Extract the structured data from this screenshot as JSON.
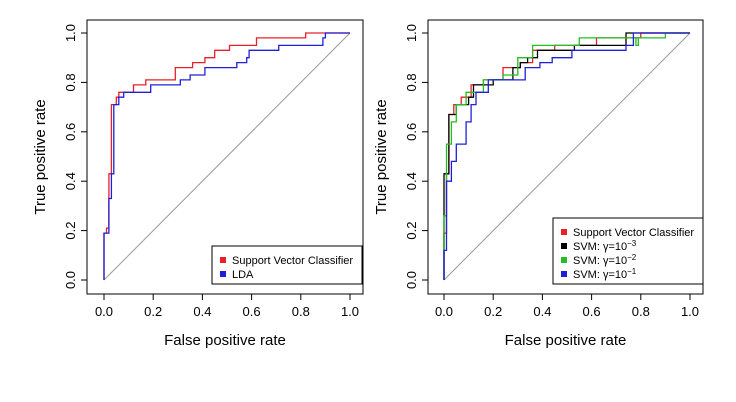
{
  "chart_data": [
    {
      "type": "line",
      "xlabel": "False positive rate",
      "ylabel": "True positive rate",
      "xlim": [
        0,
        1
      ],
      "ylim": [
        0,
        1
      ],
      "x_ticks": [
        "0.0",
        "0.2",
        "0.4",
        "0.6",
        "0.8",
        "1.0"
      ],
      "y_ticks": [
        "0.0",
        "0.2",
        "0.4",
        "0.6",
        "0.8",
        "1.0"
      ],
      "grid": false,
      "diagonal_reference": true,
      "legend_position": "bottom-right",
      "series": [
        {
          "name": "Support Vector Classifier",
          "color": "#e8202a",
          "points": [
            [
              0.0,
              0.0
            ],
            [
              0.0,
              0.19
            ],
            [
              0.01,
              0.19
            ],
            [
              0.01,
              0.21
            ],
            [
              0.02,
              0.21
            ],
            [
              0.02,
              0.43
            ],
            [
              0.03,
              0.43
            ],
            [
              0.03,
              0.71
            ],
            [
              0.05,
              0.71
            ],
            [
              0.05,
              0.74
            ],
            [
              0.06,
              0.74
            ],
            [
              0.06,
              0.76
            ],
            [
              0.12,
              0.76
            ],
            [
              0.12,
              0.79
            ],
            [
              0.17,
              0.79
            ],
            [
              0.17,
              0.81
            ],
            [
              0.29,
              0.81
            ],
            [
              0.29,
              0.86
            ],
            [
              0.36,
              0.86
            ],
            [
              0.36,
              0.88
            ],
            [
              0.41,
              0.88
            ],
            [
              0.41,
              0.9
            ],
            [
              0.45,
              0.9
            ],
            [
              0.45,
              0.93
            ],
            [
              0.51,
              0.93
            ],
            [
              0.51,
              0.95
            ],
            [
              0.62,
              0.95
            ],
            [
              0.62,
              0.98
            ],
            [
              0.82,
              0.98
            ],
            [
              0.82,
              1.0
            ],
            [
              1.0,
              1.0
            ]
          ]
        },
        {
          "name": "LDA",
          "color": "#2020d8",
          "points": [
            [
              0.0,
              0.0
            ],
            [
              0.0,
              0.19
            ],
            [
              0.02,
              0.19
            ],
            [
              0.02,
              0.33
            ],
            [
              0.03,
              0.33
            ],
            [
              0.03,
              0.43
            ],
            [
              0.04,
              0.43
            ],
            [
              0.04,
              0.71
            ],
            [
              0.06,
              0.71
            ],
            [
              0.06,
              0.74
            ],
            [
              0.08,
              0.74
            ],
            [
              0.08,
              0.76
            ],
            [
              0.19,
              0.76
            ],
            [
              0.19,
              0.79
            ],
            [
              0.31,
              0.79
            ],
            [
              0.31,
              0.81
            ],
            [
              0.35,
              0.81
            ],
            [
              0.35,
              0.83
            ],
            [
              0.41,
              0.83
            ],
            [
              0.41,
              0.86
            ],
            [
              0.54,
              0.86
            ],
            [
              0.54,
              0.88
            ],
            [
              0.58,
              0.88
            ],
            [
              0.58,
              0.9
            ],
            [
              0.59,
              0.9
            ],
            [
              0.59,
              0.93
            ],
            [
              0.71,
              0.93
            ],
            [
              0.71,
              0.95
            ],
            [
              0.89,
              0.95
            ],
            [
              0.89,
              0.98
            ],
            [
              0.9,
              0.98
            ],
            [
              0.9,
              1.0
            ],
            [
              1.0,
              1.0
            ]
          ]
        }
      ]
    },
    {
      "type": "line",
      "xlabel": "False positive rate",
      "ylabel": "True positive rate",
      "xlim": [
        0,
        1
      ],
      "ylim": [
        0,
        1
      ],
      "x_ticks": [
        "0.0",
        "0.2",
        "0.4",
        "0.6",
        "0.8",
        "1.0"
      ],
      "y_ticks": [
        "0.0",
        "0.2",
        "0.4",
        "0.6",
        "0.8",
        "1.0"
      ],
      "grid": false,
      "diagonal_reference": true,
      "legend_position": "bottom-right",
      "series": [
        {
          "name": "Support Vector Classifier",
          "legend_main": "Support Vector Classifier",
          "legend_sup": "",
          "color": "#e8202a",
          "points": [
            [
              0.0,
              0.0
            ],
            [
              0.0,
              0.19
            ],
            [
              0.01,
              0.19
            ],
            [
              0.01,
              0.43
            ],
            [
              0.02,
              0.43
            ],
            [
              0.02,
              0.67
            ],
            [
              0.04,
              0.67
            ],
            [
              0.04,
              0.71
            ],
            [
              0.07,
              0.71
            ],
            [
              0.07,
              0.74
            ],
            [
              0.11,
              0.74
            ],
            [
              0.11,
              0.79
            ],
            [
              0.16,
              0.79
            ],
            [
              0.16,
              0.81
            ],
            [
              0.24,
              0.81
            ],
            [
              0.24,
              0.86
            ],
            [
              0.31,
              0.86
            ],
            [
              0.31,
              0.88
            ],
            [
              0.36,
              0.88
            ],
            [
              0.36,
              0.93
            ],
            [
              0.45,
              0.93
            ],
            [
              0.45,
              0.95
            ],
            [
              0.62,
              0.95
            ],
            [
              0.62,
              0.98
            ],
            [
              0.8,
              0.98
            ],
            [
              0.8,
              1.0
            ],
            [
              1.0,
              1.0
            ]
          ]
        },
        {
          "name": "SVM: γ=10−3",
          "legend_main": "SVM: γ=10",
          "legend_sup": "−3",
          "color": "#000000",
          "points": [
            [
              0.0,
              0.0
            ],
            [
              0.0,
              0.43
            ],
            [
              0.02,
              0.43
            ],
            [
              0.02,
              0.67
            ],
            [
              0.05,
              0.67
            ],
            [
              0.05,
              0.71
            ],
            [
              0.1,
              0.71
            ],
            [
              0.1,
              0.74
            ],
            [
              0.12,
              0.74
            ],
            [
              0.12,
              0.79
            ],
            [
              0.2,
              0.79
            ],
            [
              0.2,
              0.81
            ],
            [
              0.28,
              0.81
            ],
            [
              0.28,
              0.86
            ],
            [
              0.31,
              0.86
            ],
            [
              0.31,
              0.88
            ],
            [
              0.34,
              0.88
            ],
            [
              0.34,
              0.9
            ],
            [
              0.38,
              0.9
            ],
            [
              0.38,
              0.93
            ],
            [
              0.53,
              0.93
            ],
            [
              0.53,
              0.95
            ],
            [
              0.74,
              0.95
            ],
            [
              0.74,
              1.0
            ],
            [
              1.0,
              1.0
            ]
          ]
        },
        {
          "name": "SVM: γ=10−2",
          "legend_main": "SVM: γ=10",
          "legend_sup": "−2",
          "color": "#20c020",
          "points": [
            [
              0.0,
              0.0
            ],
            [
              0.0,
              0.26
            ],
            [
              0.01,
              0.26
            ],
            [
              0.01,
              0.55
            ],
            [
              0.03,
              0.55
            ],
            [
              0.03,
              0.64
            ],
            [
              0.05,
              0.64
            ],
            [
              0.05,
              0.71
            ],
            [
              0.09,
              0.71
            ],
            [
              0.09,
              0.76
            ],
            [
              0.16,
              0.76
            ],
            [
              0.16,
              0.81
            ],
            [
              0.24,
              0.81
            ],
            [
              0.24,
              0.83
            ],
            [
              0.3,
              0.83
            ],
            [
              0.3,
              0.9
            ],
            [
              0.36,
              0.9
            ],
            [
              0.36,
              0.95
            ],
            [
              0.55,
              0.95
            ],
            [
              0.55,
              0.98
            ],
            [
              0.78,
              0.98
            ],
            [
              0.78,
              0.95
            ],
            [
              0.79,
              0.95
            ],
            [
              0.79,
              0.98
            ],
            [
              0.9,
              0.98
            ],
            [
              0.9,
              1.0
            ],
            [
              1.0,
              1.0
            ]
          ]
        },
        {
          "name": "SVM: γ=10−1",
          "legend_main": "SVM: γ=10",
          "legend_sup": "−1",
          "color": "#2020d8",
          "points": [
            [
              0.0,
              0.0
            ],
            [
              0.0,
              0.12
            ],
            [
              0.01,
              0.12
            ],
            [
              0.01,
              0.4
            ],
            [
              0.03,
              0.4
            ],
            [
              0.03,
              0.48
            ],
            [
              0.05,
              0.48
            ],
            [
              0.05,
              0.55
            ],
            [
              0.09,
              0.55
            ],
            [
              0.09,
              0.64
            ],
            [
              0.11,
              0.64
            ],
            [
              0.11,
              0.71
            ],
            [
              0.13,
              0.71
            ],
            [
              0.13,
              0.76
            ],
            [
              0.18,
              0.76
            ],
            [
              0.18,
              0.81
            ],
            [
              0.33,
              0.81
            ],
            [
              0.33,
              0.86
            ],
            [
              0.39,
              0.86
            ],
            [
              0.39,
              0.88
            ],
            [
              0.44,
              0.88
            ],
            [
              0.44,
              0.9
            ],
            [
              0.52,
              0.9
            ],
            [
              0.52,
              0.93
            ],
            [
              0.74,
              0.93
            ],
            [
              0.74,
              0.95
            ],
            [
              0.77,
              0.95
            ],
            [
              0.77,
              1.0
            ],
            [
              1.0,
              1.0
            ]
          ]
        }
      ]
    }
  ]
}
